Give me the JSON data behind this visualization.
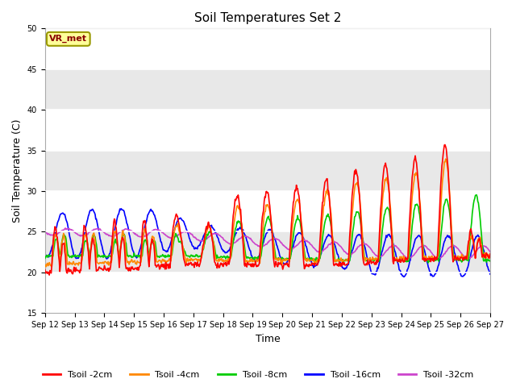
{
  "title": "Soil Temperatures Set 2",
  "xlabel": "Time",
  "ylabel": "Soil Temperature (C)",
  "ylim": [
    15,
    50
  ],
  "yticks": [
    15,
    20,
    25,
    30,
    35,
    40,
    45,
    50
  ],
  "annotation_text": "VR_met",
  "annotation_bg": "#ffff99",
  "annotation_border": "#999900",
  "line_colors": {
    "Tsoil -2cm": "#ff0000",
    "Tsoil -4cm": "#ff8800",
    "Tsoil -8cm": "#00cc00",
    "Tsoil -16cm": "#0000ff",
    "Tsoil -32cm": "#cc44cc"
  },
  "fig_bg": "#ffffff",
  "plot_bg": "#ffffff",
  "band_colors": [
    "#ffffff",
    "#e8e8e8"
  ],
  "band_edges": [
    15,
    20,
    25,
    30,
    35,
    40,
    45,
    50
  ],
  "start_day": 12,
  "end_day": 27,
  "n_days": 15
}
